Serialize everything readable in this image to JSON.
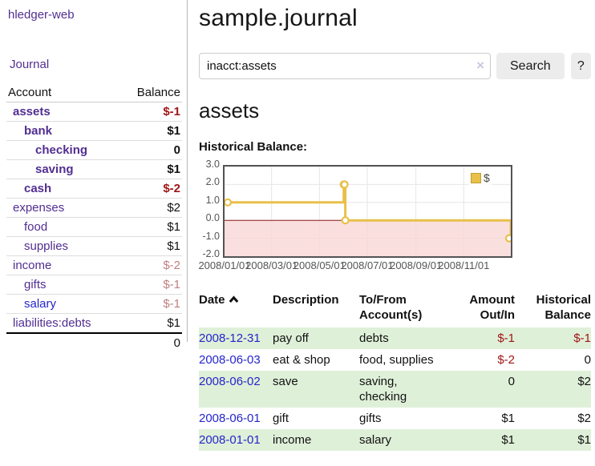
{
  "app": {
    "title": "hledger-web"
  },
  "sidebar": {
    "nav": {
      "journal": "Journal"
    },
    "columns": {
      "account": "Account",
      "balance": "Balance"
    },
    "accounts": [
      {
        "name": "assets",
        "balance": "$-1"
      },
      {
        "name": "bank",
        "balance": "$1"
      },
      {
        "name": "checking",
        "balance": "0"
      },
      {
        "name": "saving",
        "balance": "$1"
      },
      {
        "name": "cash",
        "balance": "$-2"
      },
      {
        "name": "expenses",
        "balance": "$2"
      },
      {
        "name": "food",
        "balance": "$1"
      },
      {
        "name": "supplies",
        "balance": "$1"
      },
      {
        "name": "income",
        "balance": "$-2"
      },
      {
        "name": "gifts",
        "balance": "$-1"
      },
      {
        "name": "salary",
        "balance": "$-1"
      },
      {
        "name": "liabilities:debts",
        "balance": "$1"
      }
    ],
    "total": "0"
  },
  "main": {
    "title": "sample.journal",
    "search": {
      "value": "inacct:assets",
      "clear_icon": "×",
      "search_button": "Search",
      "help_button": "?"
    },
    "account_heading": "assets",
    "chart_title": "Historical Balance:"
  },
  "chart_data": {
    "type": "line",
    "style": "step-after",
    "title": "Historical Balance:",
    "series": [
      {
        "name": "$",
        "color": "#e8c04a",
        "points": [
          [
            "2008-01-01",
            1
          ],
          [
            "2008-06-01",
            2
          ],
          [
            "2008-06-02",
            2
          ],
          [
            "2008-06-03",
            0
          ],
          [
            "2008-12-31",
            -1
          ]
        ]
      }
    ],
    "xlim": [
      "2008-01-01",
      "2008-12-31"
    ],
    "ylim": [
      -2,
      3
    ],
    "x_ticks": [
      "2008/01/01",
      "2008/03/01",
      "2008/05/01",
      "2008/07/01",
      "2008/09/01",
      "2008/11/01"
    ],
    "y_ticks": [
      3,
      2,
      1,
      0,
      -1,
      -2
    ],
    "grid": true,
    "legend_position": "top-right",
    "negative_region_color": "#f9d7d7",
    "zero_line_color": "#8b1a1a"
  },
  "register": {
    "headers": {
      "date": "Date",
      "description": "Description",
      "accounts": "To/From Account(s)",
      "amount": "Amount Out/In",
      "balance": "Historical Balance"
    },
    "rows": [
      {
        "date": "2008-12-31",
        "description": "pay off",
        "accounts": "debts",
        "amount": "$-1",
        "balance": "$-1"
      },
      {
        "date": "2008-06-03",
        "description": "eat & shop",
        "accounts": "food, supplies",
        "amount": "$-2",
        "balance": "0"
      },
      {
        "date": "2008-06-02",
        "description": "save",
        "accounts": "saving, checking",
        "amount": "0",
        "balance": "$2"
      },
      {
        "date": "2008-06-01",
        "description": "gift",
        "accounts": "gifts",
        "amount": "$1",
        "balance": "$2"
      },
      {
        "date": "2008-01-01",
        "description": "income",
        "accounts": "salary",
        "amount": "$1",
        "balance": "$1"
      }
    ]
  },
  "colors": {
    "purple": "#522e91",
    "linkblue": "#2525cc",
    "negative": "#a01616",
    "negative_soft": "#c08080",
    "stripe": "#dff0d8",
    "gold": "#e8c04a"
  }
}
